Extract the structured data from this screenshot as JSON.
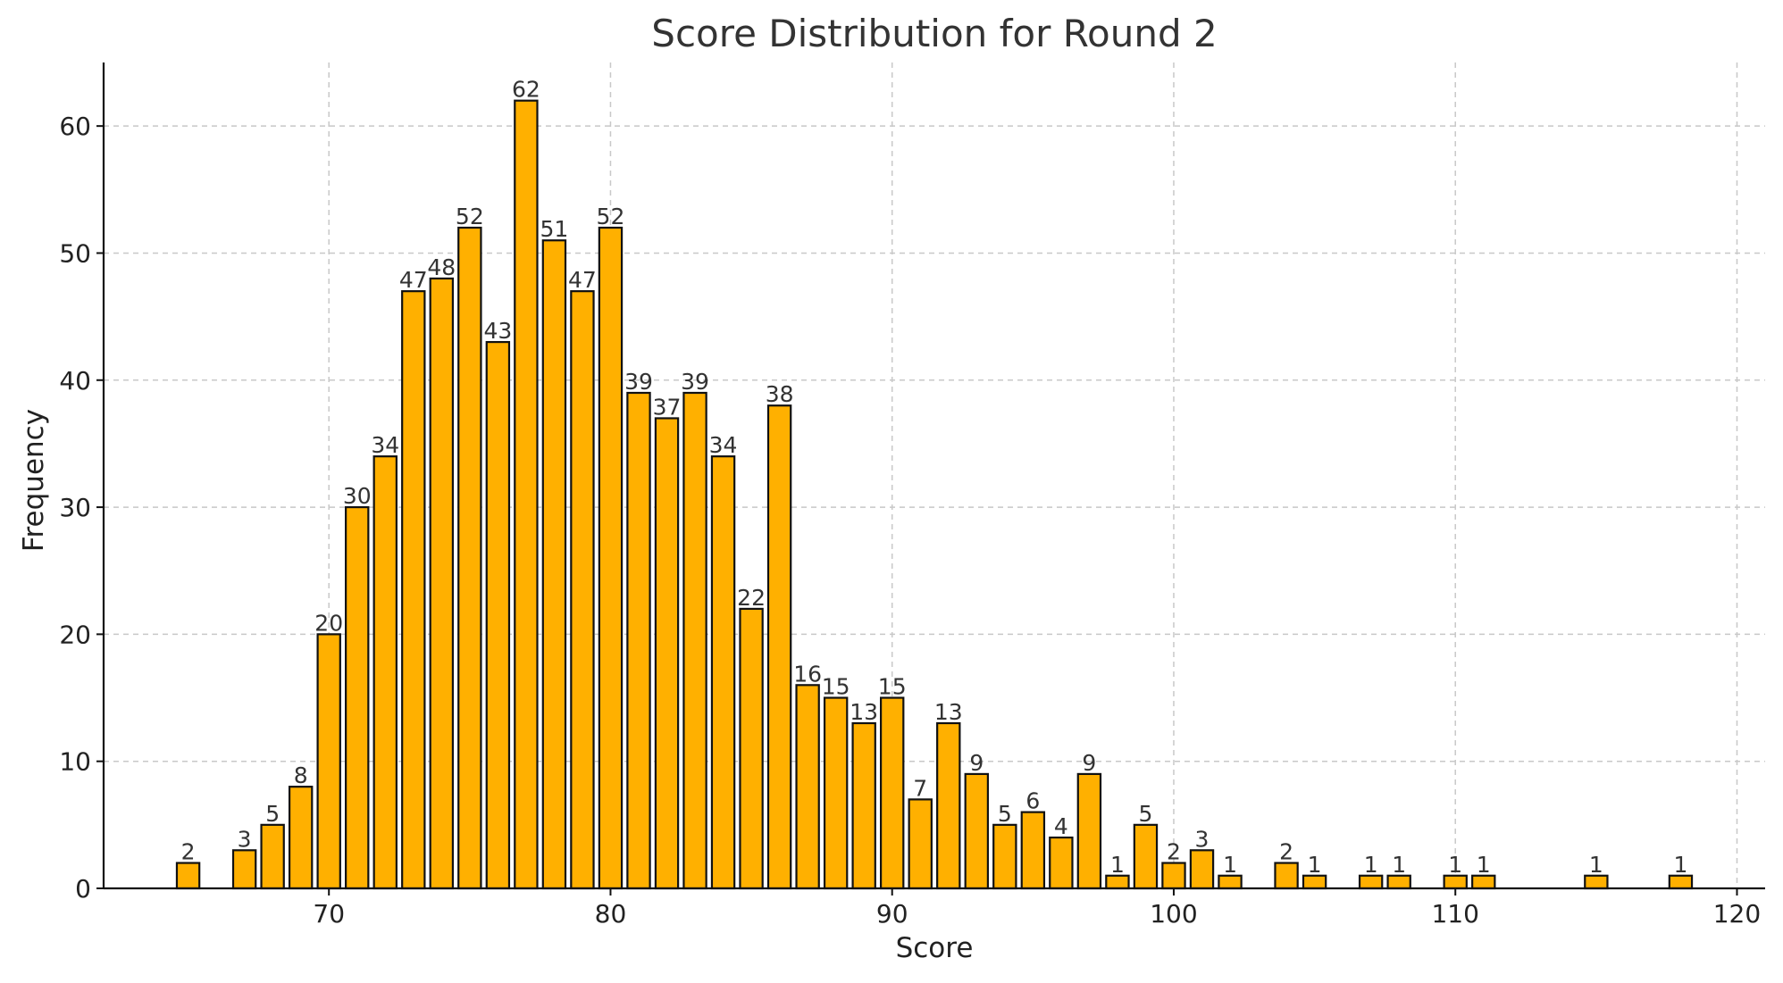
{
  "chart_data": {
    "type": "bar",
    "title": "Score Distribution for Round 2",
    "xlabel": "Score",
    "ylabel": "Frequency",
    "xlim": [
      62,
      121
    ],
    "ylim": [
      0,
      65
    ],
    "xticks": [
      70,
      80,
      90,
      100,
      110,
      120
    ],
    "yticks": [
      0,
      10,
      20,
      30,
      40,
      50,
      60
    ],
    "grid": true,
    "legend": "none",
    "colors": {
      "bar_fill": "#FFB000",
      "bar_edge": "#111111",
      "grid": "#c8c8c8",
      "axis": "#111111",
      "text": "#333333"
    },
    "x": [
      65,
      67,
      68,
      69,
      70,
      71,
      72,
      73,
      74,
      75,
      76,
      77,
      78,
      79,
      80,
      81,
      82,
      83,
      84,
      85,
      86,
      87,
      88,
      89,
      90,
      91,
      92,
      93,
      94,
      95,
      96,
      97,
      98,
      99,
      100,
      101,
      102,
      104,
      105,
      107,
      108,
      110,
      111,
      115,
      118
    ],
    "values": [
      2,
      3,
      5,
      8,
      20,
      30,
      34,
      47,
      48,
      52,
      43,
      62,
      51,
      47,
      52,
      39,
      37,
      39,
      34,
      22,
      38,
      16,
      15,
      13,
      15,
      7,
      13,
      9,
      5,
      6,
      4,
      9,
      1,
      5,
      2,
      3,
      1,
      2,
      1,
      1,
      1,
      1,
      1,
      1,
      1
    ]
  }
}
